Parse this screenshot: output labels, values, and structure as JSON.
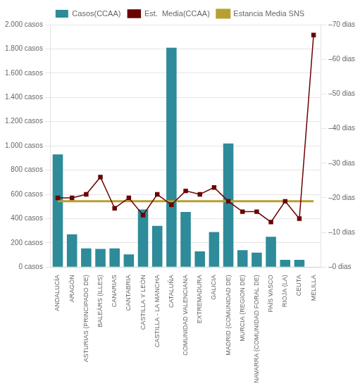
{
  "chart_data": {
    "type": "bar",
    "categories": [
      "ANDALUCÍA",
      "ARAGÓN",
      "ASTURIAS (PRINCIPADO DE)",
      "BALEÀRS (ILLES)",
      "CANARIAS",
      "CANTABRIA",
      "CASTILLA Y LEÓN",
      "CASTILLA - LA MANCHA",
      "CATALUÑA",
      "COMUNIDAD VALENCIANA",
      "EXTREMADURA",
      "GALICIA",
      "MADRID (COMUNIDAD DE)",
      "MURCIA (REGION DE)",
      "NAVARRA (COMUNIDAD FORAL DE)",
      "PAÍS VASCO",
      "RIOJA (LA)",
      "CEUTA",
      "MELILLA"
    ],
    "series": [
      {
        "name": "Casos(CCAA)",
        "type": "bar",
        "color": "#2e8b9a",
        "values": [
          930,
          270,
          155,
          150,
          155,
          105,
          475,
          340,
          1810,
          455,
          130,
          290,
          1020,
          140,
          120,
          250,
          60,
          60,
          0
        ]
      },
      {
        "name": "Est.  Media(CCAA)",
        "type": "line",
        "axis": "y2",
        "color": "#6b0000",
        "marker": "square",
        "values": [
          20,
          20,
          21,
          26,
          17,
          20,
          15,
          21,
          18,
          22,
          21,
          23,
          19,
          16,
          16,
          13,
          19,
          14,
          67
        ]
      },
      {
        "name": "Estancia Media SNS",
        "type": "hline",
        "axis": "y2",
        "color": "#b8a030",
        "value": 19
      }
    ],
    "ylim": [
      0,
      2000
    ],
    "yticks": [
      {
        "value": 0,
        "label": "0 casos"
      },
      {
        "value": 200,
        "label": "200 casos"
      },
      {
        "value": 400,
        "label": "400 casos"
      },
      {
        "value": 600,
        "label": "600 casos"
      },
      {
        "value": 800,
        "label": "800 casos"
      },
      {
        "value": 1000,
        "label": "1.000 casos"
      },
      {
        "value": 1200,
        "label": "1.200 casos"
      },
      {
        "value": 1400,
        "label": "1.400 casos"
      },
      {
        "value": 1600,
        "label": "1.600 casos"
      },
      {
        "value": 1800,
        "label": "1.800 casos"
      },
      {
        "value": 2000,
        "label": "2.000 casos"
      }
    ],
    "y2lim": [
      0,
      70
    ],
    "y2ticks": [
      {
        "value": 0,
        "label": "–0 dias"
      },
      {
        "value": 10,
        "label": "–10 dias"
      },
      {
        "value": 20,
        "label": "–20 dias"
      },
      {
        "value": 30,
        "label": "–30 dias"
      },
      {
        "value": 40,
        "label": "–40 dias"
      },
      {
        "value": 50,
        "label": "–50 dias"
      },
      {
        "value": 60,
        "label": "–60 dias"
      },
      {
        "value": 70,
        "label": "–70 dias"
      }
    ],
    "grid": true,
    "legend": "top"
  }
}
